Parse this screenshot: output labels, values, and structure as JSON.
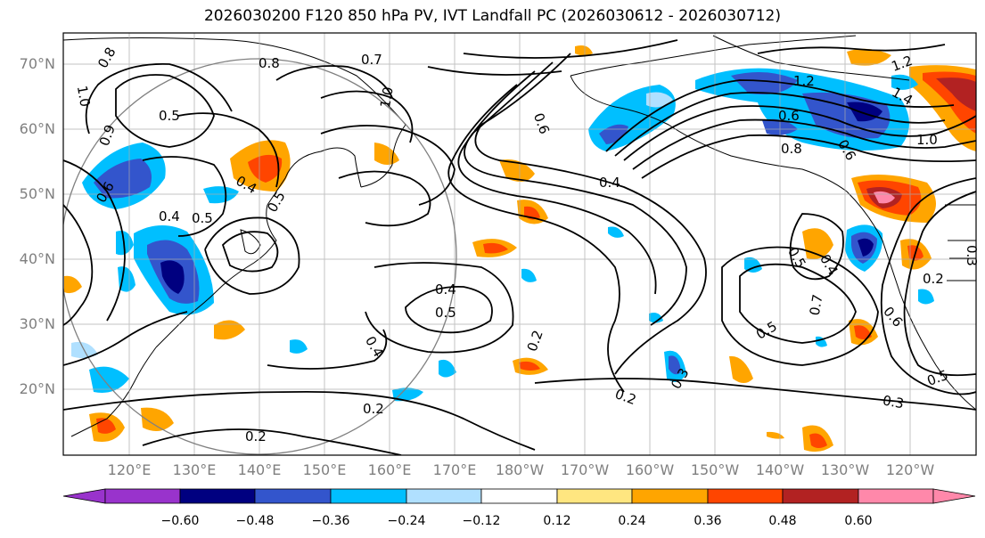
{
  "title": "2026030200 F120 850 hPa PV, IVT Landfall PC (2026030612 - 2026030712)",
  "lat_labels": [
    "70°N",
    "60°N",
    "50°N",
    "40°N",
    "30°N",
    "20°N"
  ],
  "lon_labels": [
    "120°E",
    "130°E",
    "140°E",
    "150°E",
    "160°E",
    "170°E",
    "180°W",
    "170°W",
    "160°W",
    "150°W",
    "140°W",
    "130°W",
    "120°W"
  ],
  "colorbar": {
    "ticks": [
      "−0.60",
      "−0.48",
      "−0.36",
      "−0.24",
      "−0.12",
      "0.12",
      "0.24",
      "0.36",
      "0.48",
      "0.60"
    ],
    "colors": [
      "#9933cc",
      "#000080",
      "#3355cc",
      "#00bfff",
      "#b0e0ff",
      "#ffffff",
      "#ffe680",
      "#ffa500",
      "#ff4500",
      "#b22222",
      "#ff88aa"
    ]
  },
  "contour_labels": [
    "0.8",
    "1.0",
    "0.9",
    "0.5",
    "0.6",
    "0.4",
    "0.5",
    "0.4",
    "0.5",
    "0.8",
    "0.7",
    "1.0",
    "0.4",
    "0.4",
    "0.5",
    "0.4",
    "0.2",
    "0.2",
    "0.2",
    "0.2",
    "0.3",
    "0.6",
    "0.8",
    "1.2",
    "1.2",
    "1.4",
    "0.6",
    "0.5",
    "0.4",
    "0.3",
    "0.2",
    "0.3",
    "0.5",
    "0.6",
    "0.7",
    "0.5",
    "1.0",
    "0.6"
  ]
}
